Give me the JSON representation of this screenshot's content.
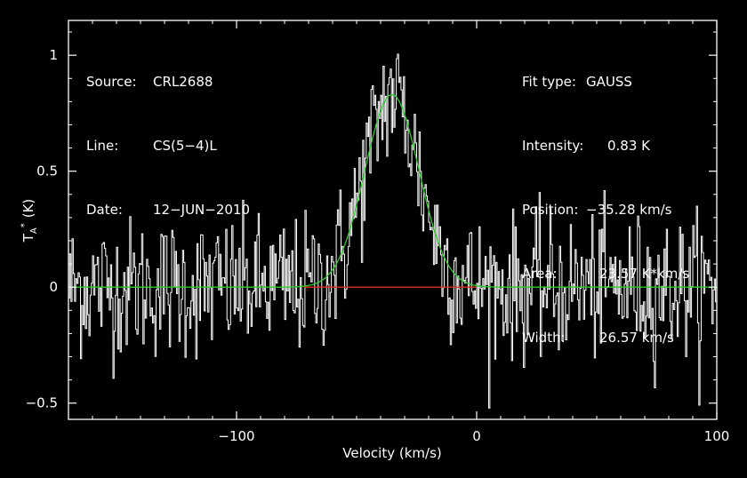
{
  "chart_data": {
    "type": "line",
    "xlabel": "Velocity (km/s)",
    "ylabel": "T",
    "ylabel_sub": "A",
    "ylabel_sup": "*",
    "ylabel_unit": "(K)",
    "xlim": [
      -170,
      100
    ],
    "ylim": [
      -0.57,
      1.15
    ],
    "x_ticks": [
      -100,
      0,
      100
    ],
    "x_tick_labels": [
      "−100",
      "0",
      "100"
    ],
    "y_ticks": [
      -0.5,
      0,
      0.5,
      1
    ],
    "y_tick_labels": [
      "−0.5",
      "0",
      "0.5",
      "1"
    ],
    "grid": false,
    "axis_color": "#ffffff",
    "background": "#000000",
    "series": [
      {
        "role": "spectrum",
        "color": "#ffffff",
        "channel_width": 0.5,
        "noise_rms": 0.15,
        "x_start": -170,
        "x_end": 100
      },
      {
        "role": "gaussian-fit",
        "color": "#2ecc2e",
        "amplitude": 0.83,
        "center": -35.28,
        "fwhm": 26.57
      },
      {
        "role": "baseline-window",
        "color": "#e03020",
        "x": [
          -72,
          0
        ],
        "y": [
          0,
          0
        ]
      }
    ]
  },
  "source_info": {
    "source_label": "Source:",
    "source_value": "CRL2688",
    "line_label": "Line:",
    "line_value": "CS(5−4)L",
    "date_label": "Date:",
    "date_value": "12−JUN−2010"
  },
  "fit_info": {
    "type_label": "Fit type:",
    "type_value": "GAUSS",
    "intensity_label": "Intensity:",
    "intensity_value": "0.83 K",
    "position_label": "Position:",
    "position_value": "−35.28 km/s",
    "area_label": "Area:",
    "area_value": "23.57 K*km/s",
    "width_label": "Width:",
    "width_value": "26.57 km/s"
  }
}
